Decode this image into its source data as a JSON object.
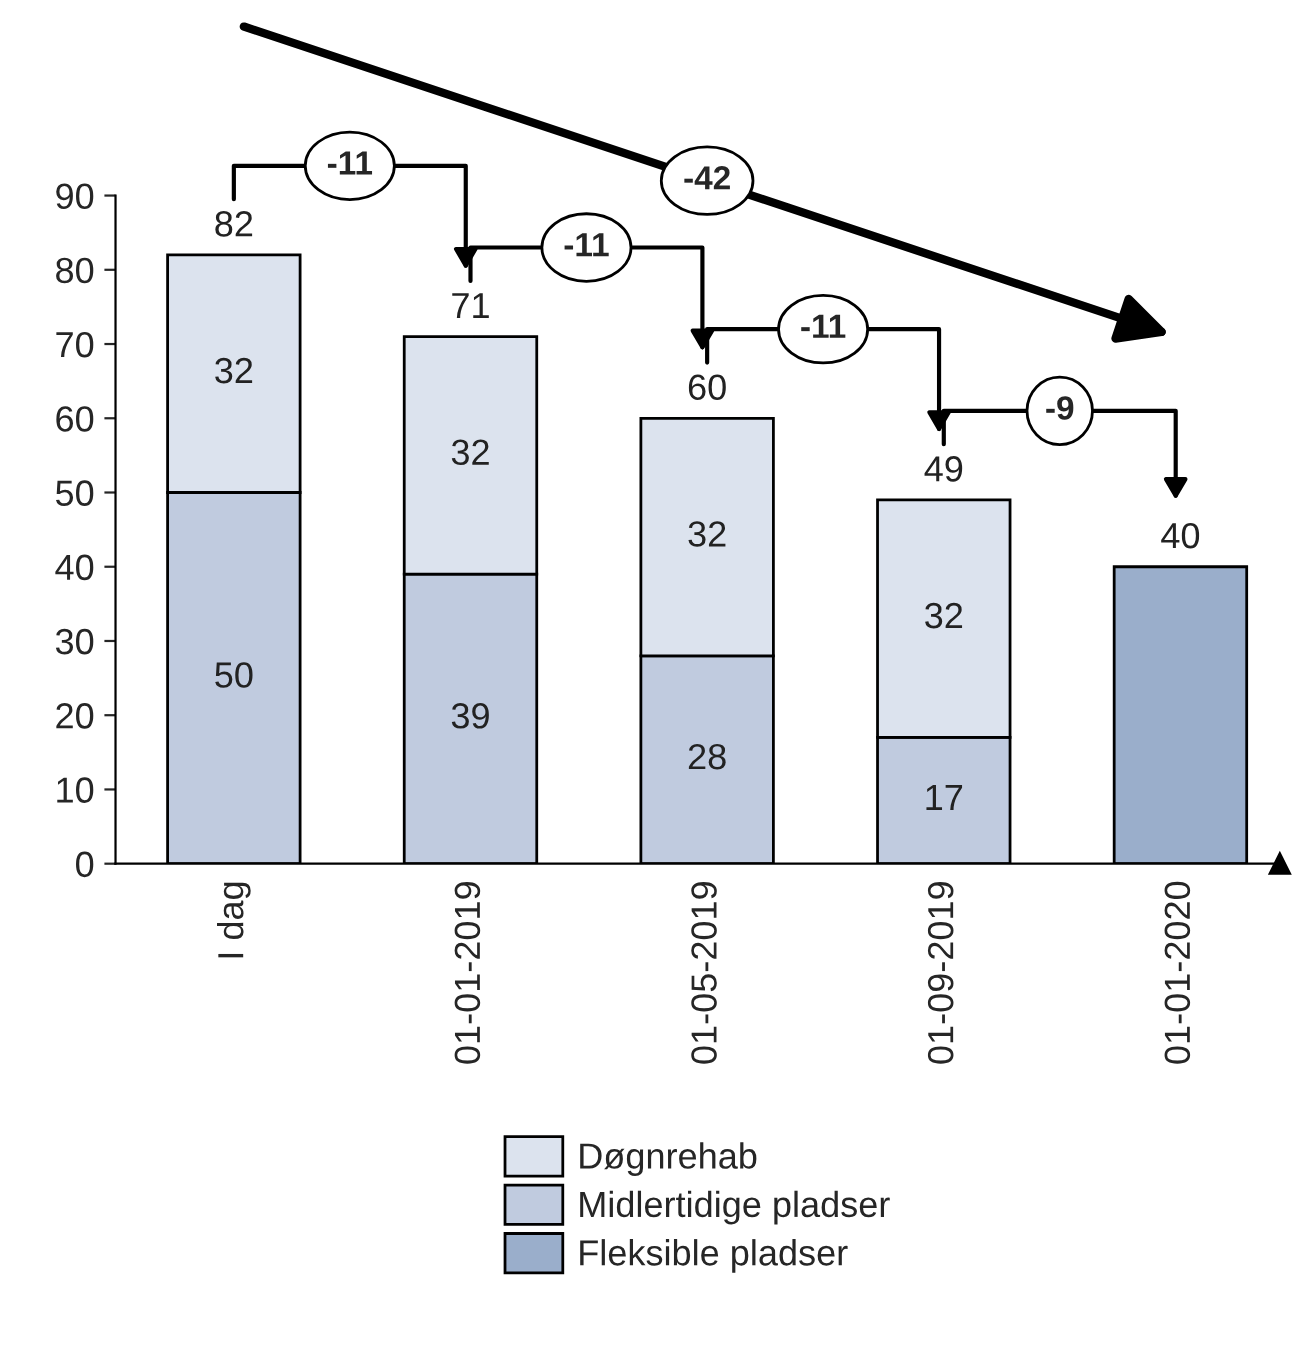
{
  "chart_data": {
    "type": "bar",
    "stacked": true,
    "categories": [
      "I dag",
      "01-01-2019",
      "01-05-2019",
      "01-09-2019",
      "01-01-2020"
    ],
    "series": [
      {
        "name": "Fleksible pladser",
        "color": "#9aaecb",
        "values": [
          null,
          null,
          null,
          null,
          40
        ],
        "value_labels": [
          null,
          null,
          null,
          null,
          null
        ]
      },
      {
        "name": "Midlertidige pladser",
        "color": "#c0cbdf",
        "values": [
          50,
          39,
          28,
          17,
          null
        ],
        "value_labels": [
          "50",
          "39",
          "28",
          "17",
          null
        ]
      },
      {
        "name": "Døgnrehab",
        "color": "#dce3ee",
        "values": [
          32,
          32,
          32,
          32,
          null
        ],
        "value_labels": [
          "32",
          "32",
          "32",
          "32",
          null
        ]
      }
    ],
    "totals": [
      "82",
      "71",
      "60",
      "49",
      "40"
    ],
    "annotations": [
      "-11",
      "-11",
      "-11",
      "-9",
      "-42"
    ],
    "ylim": [
      0,
      90
    ],
    "yticks": [
      0,
      10,
      20,
      30,
      40,
      50,
      60,
      70,
      80,
      90
    ],
    "grid": false,
    "legend": "bottom"
  }
}
